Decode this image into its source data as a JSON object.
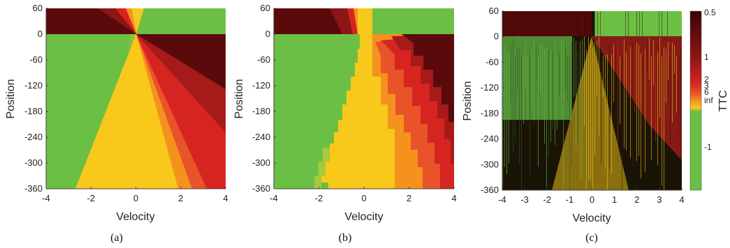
{
  "colors": {
    "green": "#6cbf45",
    "yellow": "#f8c81a",
    "orange": "#f5921e",
    "red_orange": "#e8532a",
    "red": "#d62520",
    "dark_red": "#8e1515",
    "maroon": "#5a0a0a"
  },
  "chart_data": [
    {
      "type": "heatmap",
      "panel": "(a)",
      "xlabel": "Velocity",
      "ylabel": "Position",
      "xlim": [
        -4,
        4
      ],
      "ylim": [
        -360,
        60
      ],
      "xticks": [
        "-4",
        "-2",
        "0",
        "2",
        "4"
      ],
      "yticks": [
        "60",
        "0",
        "-60",
        "-120",
        "-180",
        "-240",
        "-300",
        "-360"
      ],
      "caption": "(a)"
    },
    {
      "type": "heatmap",
      "panel": "(b)",
      "xlabel": "Velocity",
      "ylabel": "Position",
      "xlim": [
        -4,
        4
      ],
      "ylim": [
        -360,
        60
      ],
      "xticks": [
        "-4",
        "-2",
        "0",
        "2",
        "4"
      ],
      "yticks": [
        "60",
        "0",
        "-60",
        "-120",
        "-180",
        "-240",
        "-300",
        "-360"
      ],
      "caption": "(b)"
    },
    {
      "type": "heatmap",
      "panel": "(c)",
      "xlabel": "Velocity",
      "ylabel": "Position",
      "xlim": [
        -4,
        4
      ],
      "ylim": [
        -360,
        60
      ],
      "xticks": [
        "-4",
        "-3",
        "-2",
        "-1",
        "0",
        "1",
        "2",
        "3",
        "4"
      ],
      "yticks": [
        "60",
        "0",
        "-60",
        "-120",
        "-180",
        "-240",
        "-300",
        "-360"
      ],
      "caption": "(c)",
      "colorbar": {
        "label": "TTC",
        "ticks": [
          "0.5",
          "1",
          "2",
          "3",
          "6",
          "inf",
          "-1"
        ]
      }
    }
  ]
}
